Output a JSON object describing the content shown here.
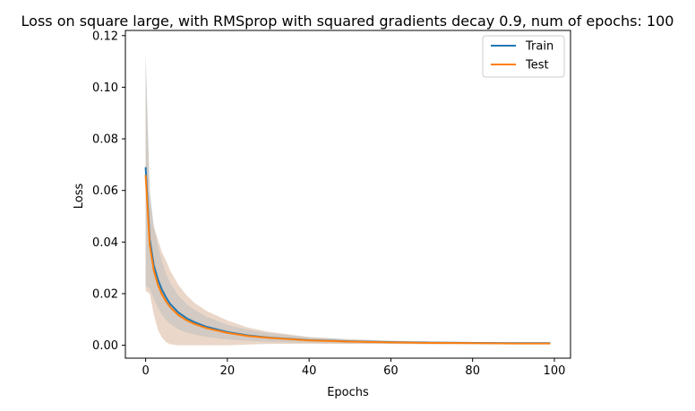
{
  "chart_data": {
    "type": "line",
    "title": "Loss on square large, with RMSprop with squared gradients decay 0.9, num of epochs: 100",
    "xlabel": "Epochs",
    "ylabel": "Loss",
    "xlim": [
      -4.95,
      103.95
    ],
    "ylim": [
      -0.005,
      0.122
    ],
    "xticks": [
      0,
      20,
      40,
      60,
      80,
      100
    ],
    "xtick_labels": [
      "0",
      "20",
      "40",
      "60",
      "80",
      "100"
    ],
    "yticks": [
      0.0,
      0.02,
      0.04,
      0.06,
      0.08,
      0.1,
      0.12
    ],
    "ytick_labels": [
      "0.00",
      "0.02",
      "0.04",
      "0.06",
      "0.08",
      "0.10",
      "0.12"
    ],
    "grid": false,
    "legend_position": "top-right",
    "series": [
      {
        "name": "Train",
        "color": "#1f77b4",
        "band_color": "#a6cfe8",
        "x": [
          0,
          1,
          2,
          3,
          4,
          5,
          6,
          8,
          10,
          12,
          15,
          20,
          25,
          30,
          40,
          50,
          60,
          70,
          80,
          90,
          99
        ],
        "y": [
          0.069,
          0.041,
          0.031,
          0.0255,
          0.0215,
          0.0185,
          0.016,
          0.0127,
          0.0105,
          0.0089,
          0.0071,
          0.0051,
          0.0038,
          0.003,
          0.002,
          0.0015,
          0.0012,
          0.001,
          0.0009,
          0.0008,
          0.0008
        ],
        "lower": [
          0.023,
          0.022,
          0.018,
          0.0145,
          0.0118,
          0.0098,
          0.0083,
          0.0062,
          0.005,
          0.0041,
          0.0032,
          0.0023,
          0.0017,
          0.0013,
          0.0009,
          0.0007,
          0.0006,
          0.0005,
          0.0005,
          0.0004,
          0.0004
        ],
        "upper": [
          0.114,
          0.06,
          0.046,
          0.0385,
          0.0325,
          0.0278,
          0.0242,
          0.0192,
          0.016,
          0.0137,
          0.011,
          0.0079,
          0.006,
          0.0047,
          0.0031,
          0.0023,
          0.0018,
          0.0015,
          0.0013,
          0.0012,
          0.0012
        ]
      },
      {
        "name": "Test",
        "color": "#ff7f0e",
        "band_color": "#d8b79c",
        "x": [
          0,
          1,
          2,
          3,
          4,
          5,
          6,
          8,
          10,
          12,
          15,
          20,
          25,
          30,
          40,
          50,
          60,
          70,
          80,
          90,
          99
        ],
        "y": [
          0.066,
          0.039,
          0.029,
          0.0235,
          0.0197,
          0.017,
          0.0148,
          0.0117,
          0.0097,
          0.0082,
          0.0066,
          0.0048,
          0.0036,
          0.0029,
          0.0019,
          0.0014,
          0.0011,
          0.0009,
          0.0008,
          0.0007,
          0.0007
        ],
        "lower": [
          0.021,
          0.02,
          0.012,
          0.006,
          0.003,
          0.0012,
          0.0004,
          0.0,
          0.0,
          0.0,
          0.0,
          0.0,
          0.0003,
          0.0005,
          0.0006,
          0.0005,
          0.0005,
          0.0004,
          0.0004,
          0.0004,
          0.0004
        ],
        "upper": [
          0.111,
          0.058,
          0.046,
          0.041,
          0.036,
          0.0328,
          0.029,
          0.0234,
          0.0194,
          0.0164,
          0.0132,
          0.0096,
          0.0069,
          0.0053,
          0.0032,
          0.0023,
          0.0017,
          0.0014,
          0.0012,
          0.001,
          0.001
        ]
      }
    ]
  }
}
